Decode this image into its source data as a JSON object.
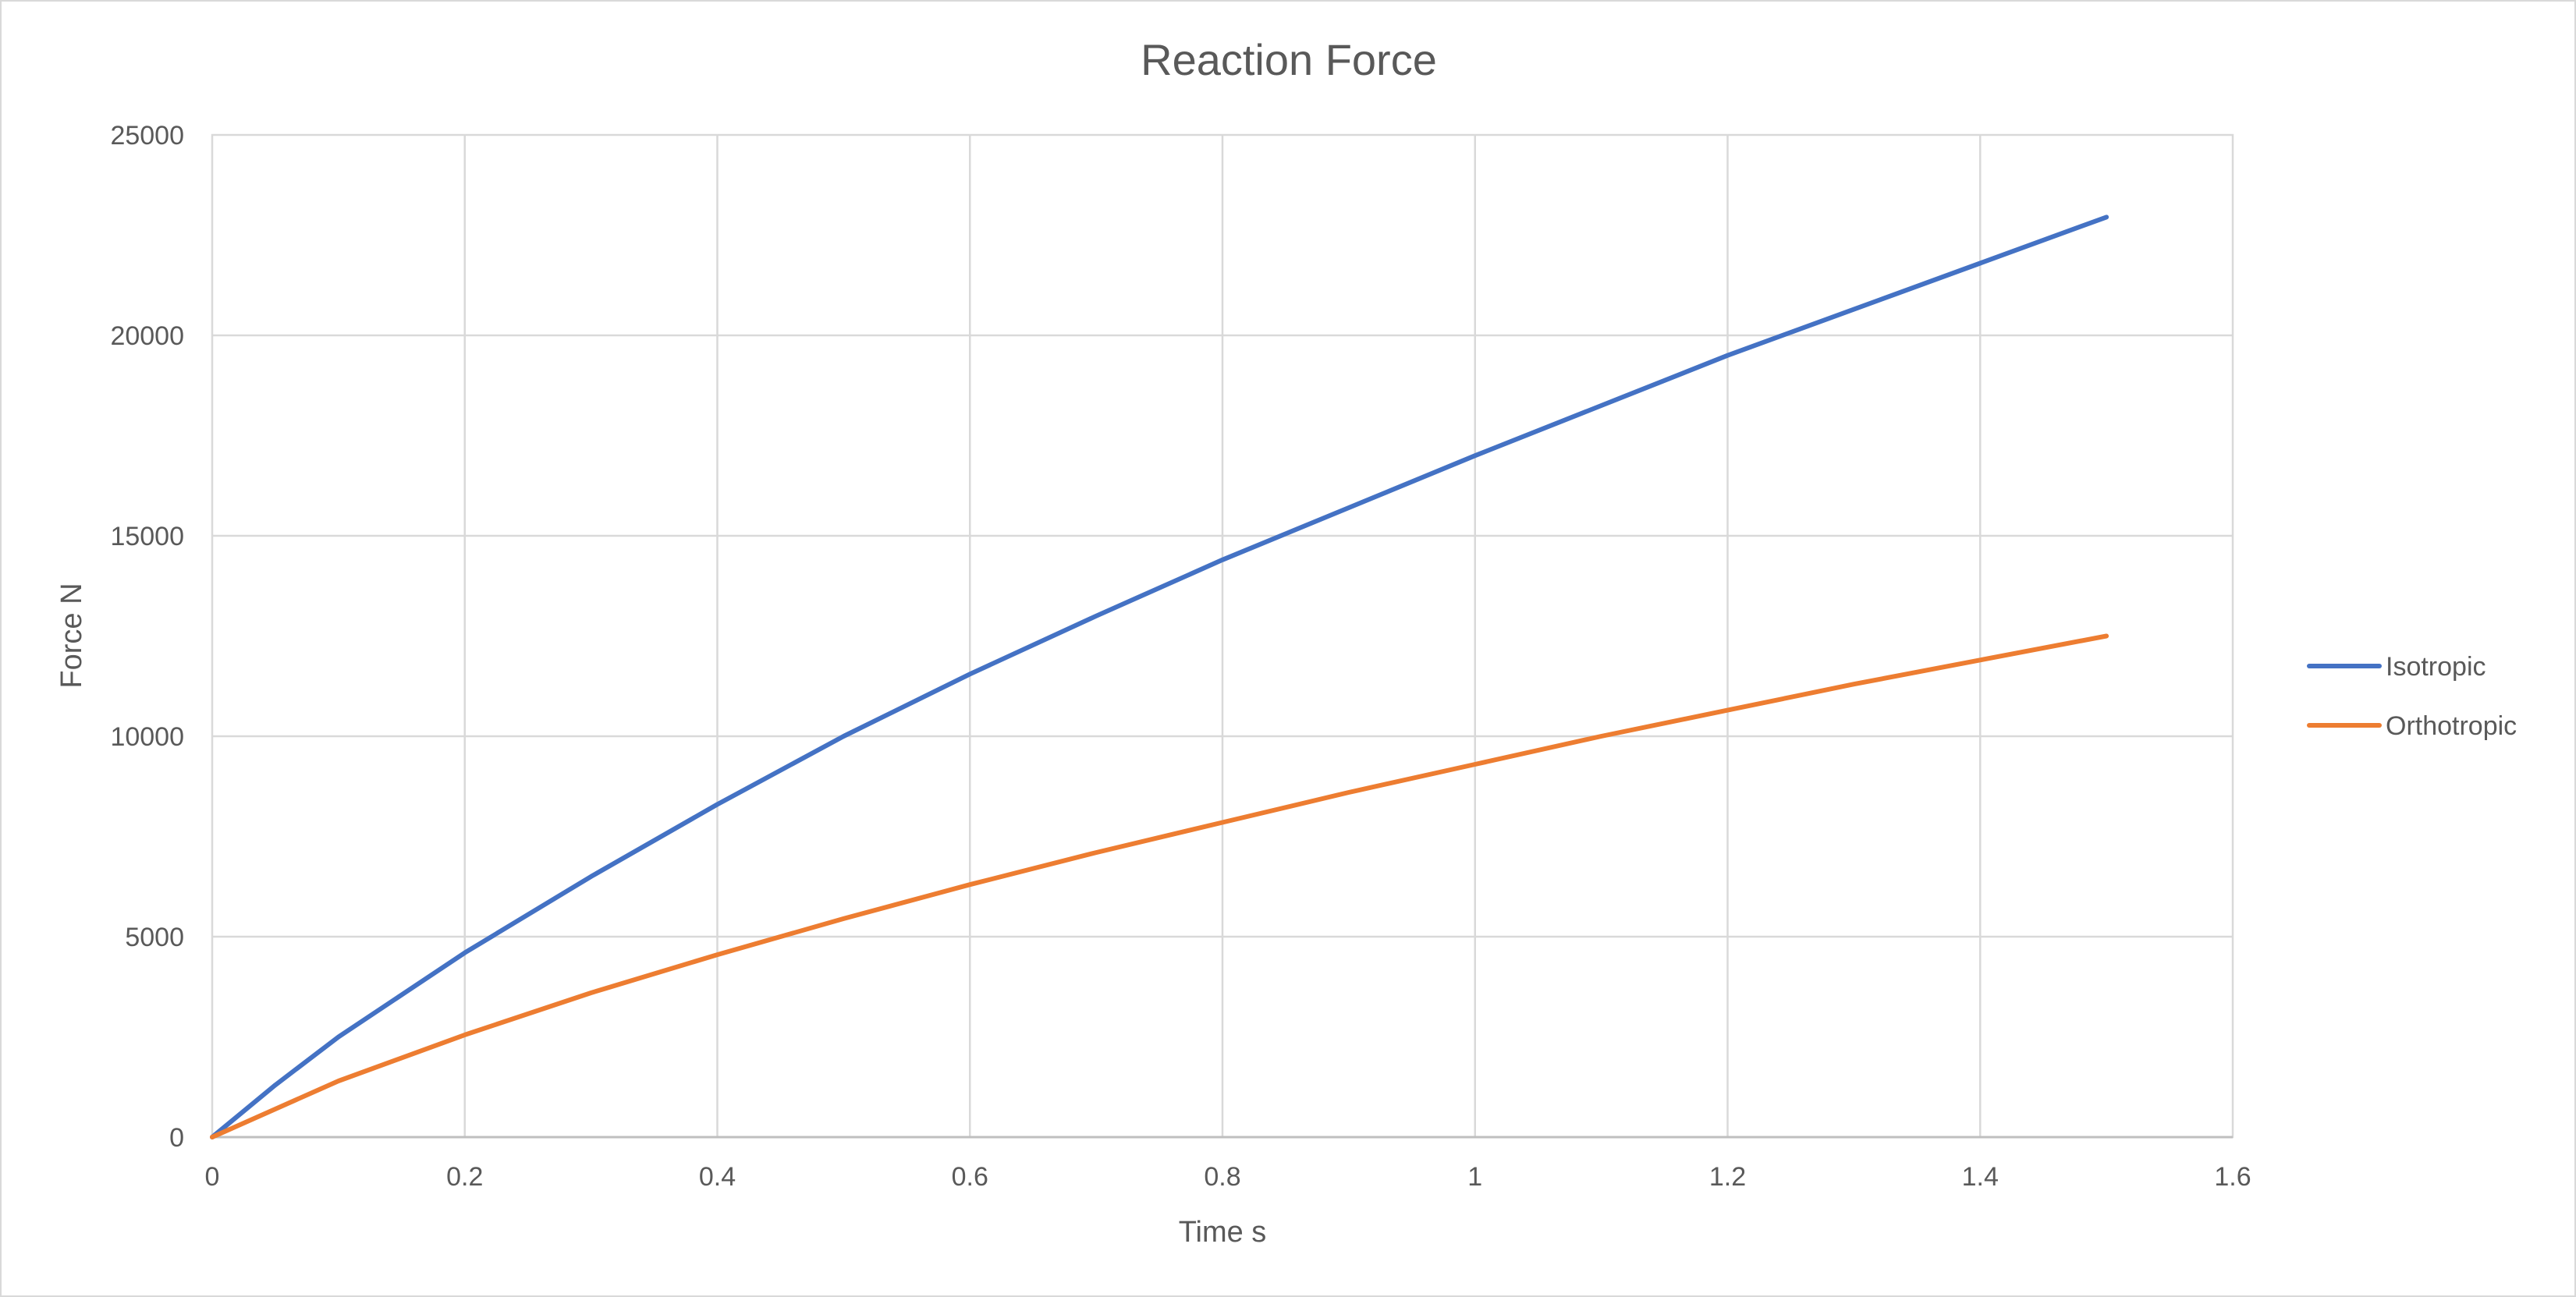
{
  "chart_data": {
    "type": "line",
    "title": "Reaction Force",
    "xlabel": "Time s",
    "ylabel": "Force N",
    "xlim": [
      0,
      1.6
    ],
    "ylim": [
      0,
      25000
    ],
    "xticks": [
      0,
      0.2,
      0.4,
      0.6,
      0.8,
      1.0,
      1.2,
      1.4,
      1.6
    ],
    "xtick_labels": [
      "0",
      "0.2",
      "0.4",
      "0.6",
      "0.8",
      "1",
      "1.2",
      "1.4",
      "1.6"
    ],
    "yticks": [
      0,
      5000,
      10000,
      15000,
      20000,
      25000
    ],
    "ytick_labels": [
      "0",
      "5000",
      "10000",
      "15000",
      "20000",
      "25000"
    ],
    "grid": true,
    "legend_position": "right",
    "series": [
      {
        "name": "Isotropic",
        "color": "#4472C4",
        "x": [
          0,
          0.05,
          0.1,
          0.2,
          0.3,
          0.4,
          0.5,
          0.6,
          0.7,
          0.8,
          0.9,
          1.0,
          1.1,
          1.2,
          1.3,
          1.4,
          1.5
        ],
        "y": [
          0,
          1300,
          2500,
          4600,
          6500,
          8300,
          10000,
          11550,
          13000,
          14400,
          15700,
          17000,
          18250,
          19500,
          20650,
          21800,
          22950
        ]
      },
      {
        "name": "Orthotropic",
        "color": "#ED7D31",
        "x": [
          0,
          0.05,
          0.1,
          0.2,
          0.3,
          0.4,
          0.5,
          0.6,
          0.7,
          0.8,
          0.9,
          1.0,
          1.1,
          1.2,
          1.3,
          1.4,
          1.5
        ],
        "y": [
          0,
          700,
          1400,
          2550,
          3600,
          4550,
          5450,
          6300,
          7100,
          7850,
          8600,
          9300,
          10000,
          10650,
          11300,
          11900,
          12500
        ]
      }
    ]
  }
}
